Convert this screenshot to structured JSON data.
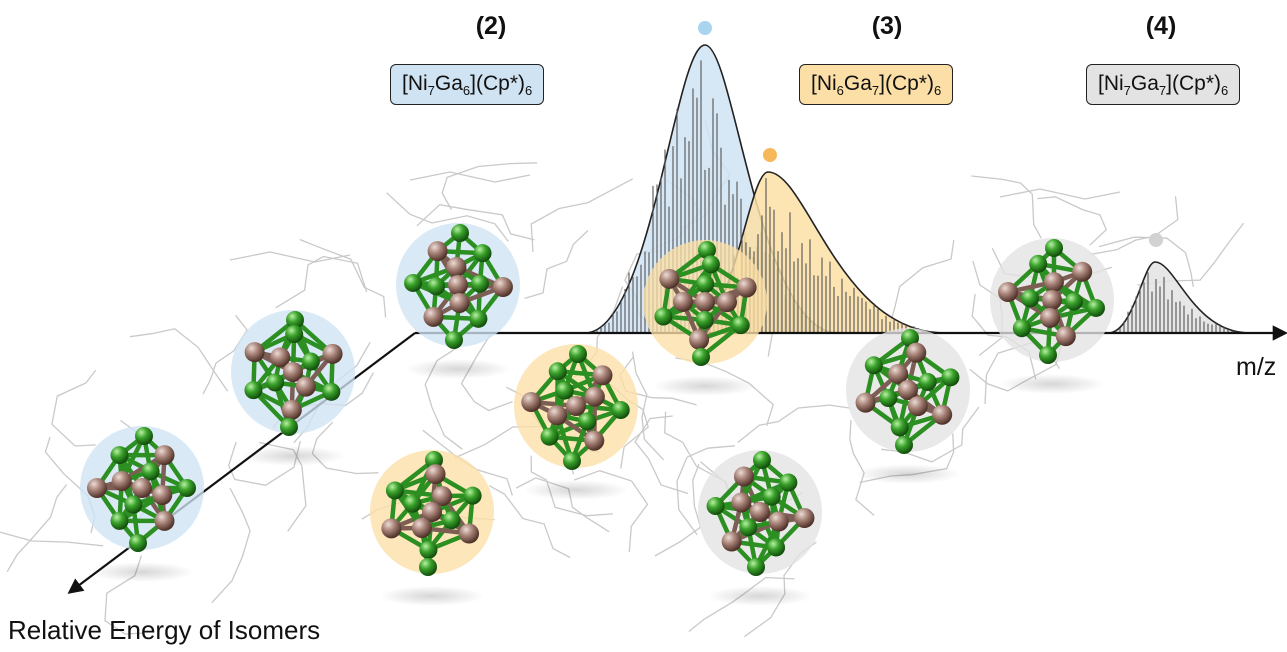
{
  "compounds": [
    {
      "number": "(2)",
      "formula": {
        "p1": "[Ni",
        "s1": "7",
        "p2": "Ga",
        "s2": "6",
        "p3": "](Cp*)",
        "s3": "6"
      },
      "color": "#cfe3f3",
      "dot": "#a8d4ee"
    },
    {
      "number": "(3)",
      "formula": {
        "p1": "[Ni",
        "s1": "6",
        "p2": "Ga",
        "s2": "7",
        "p3": "](Cp*)",
        "s3": "6"
      },
      "color": "#fbdfa6",
      "dot": "#f6b85a"
    },
    {
      "number": "(4)",
      "formula": {
        "p1": "[Ni",
        "s1": "7",
        "p2": "Ga",
        "s2": "7",
        "p3": "](Cp*)",
        "s3": "6"
      },
      "color": "#e3e3e3",
      "dot": "#d2d2d2"
    }
  ],
  "axes": {
    "x_label": "m/z",
    "y_label": "Relative Energy of Isomers"
  },
  "colors": {
    "ni_atom": "#9a7468",
    "ga_atom": "#2f9a22",
    "ligand": "#c9c9c9",
    "axis": "#111111"
  }
}
